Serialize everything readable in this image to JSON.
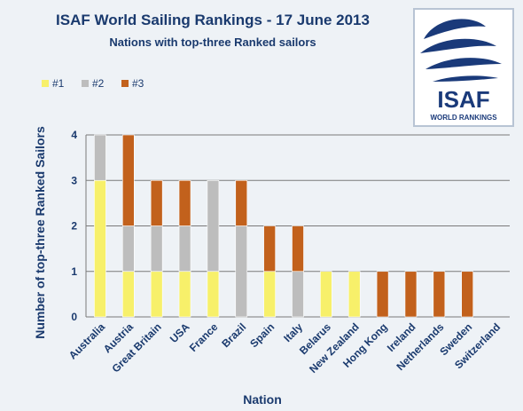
{
  "logo": {
    "name": "ISAF",
    "subtitle": "WORLD RANKINGS",
    "colors": {
      "primary": "#1a3a7a",
      "border": "#b8c4d4"
    }
  },
  "colors": {
    "series": [
      "#f7f06a",
      "#bdbdbd",
      "#c2611c"
    ],
    "text": "#1a3a6e",
    "grid": "#7a7a7a",
    "background": "#eef2f6"
  },
  "chart_data": {
    "type": "bar",
    "stacked": true,
    "title": "ISAF World Sailing Rankings - 17 June 2013",
    "subtitle": "Nations with top-three Ranked sailors",
    "xlabel": "Nation",
    "ylabel": "Number of top-three Ranked Sailors",
    "ylim": [
      0,
      4
    ],
    "yticks": [
      "0",
      "1",
      "2",
      "3",
      "4"
    ],
    "grid": true,
    "legend_position": "top-left",
    "categories": [
      "Australia",
      "Austria",
      "Great Britain",
      "USA",
      "France",
      "Brazil",
      "Spain",
      "Italy",
      "Belarus",
      "New Zealand",
      "Hong Kong",
      "Ireland",
      "Netherlands",
      "Sweden",
      "Switzerland"
    ],
    "series": [
      {
        "name": "#1",
        "values": [
          3,
          1,
          1,
          1,
          1,
          0,
          1,
          0,
          1,
          1,
          0,
          0,
          0,
          0,
          0
        ]
      },
      {
        "name": "#2",
        "values": [
          1,
          1,
          1,
          1,
          2,
          2,
          0,
          1,
          0,
          0,
          0,
          0,
          0,
          0,
          0
        ]
      },
      {
        "name": "#3",
        "values": [
          0,
          2,
          1,
          1,
          0,
          1,
          1,
          1,
          0,
          0,
          1,
          1,
          1,
          1,
          0
        ]
      }
    ]
  }
}
